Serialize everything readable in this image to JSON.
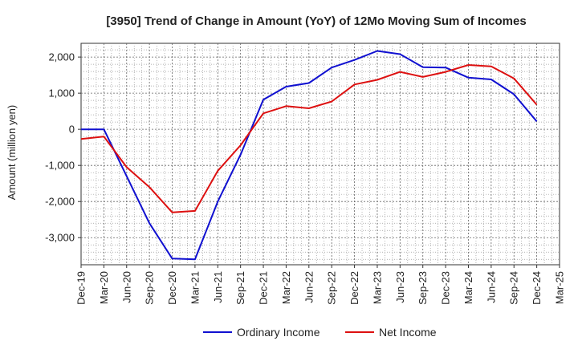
{
  "chart_data": {
    "type": "line",
    "title": "[3950]  Trend of Change in Amount (YoY) of 12Mo Moving Sum of Incomes",
    "ylabel": "Amount (million yen)",
    "xlabel": "",
    "ylim": [
      -3750,
      2380
    ],
    "yticks": [
      2000,
      1000,
      0,
      -1000,
      -2000,
      -3000
    ],
    "ytick_labels": [
      "2,000",
      "1,000",
      "0",
      "-1,000",
      "-2,000",
      "-3,000"
    ],
    "categories": [
      "Dec-19",
      "Mar-20",
      "Jun-20",
      "Sep-20",
      "Dec-20",
      "Mar-21",
      "Jun-21",
      "Sep-21",
      "Dec-21",
      "Mar-22",
      "Jun-22",
      "Sep-22",
      "Dec-22",
      "Mar-23",
      "Jun-23",
      "Sep-23",
      "Dec-23",
      "Mar-24",
      "Jun-24",
      "Sep-24",
      "Dec-24",
      "Mar-25"
    ],
    "grid": true,
    "legend_position": "bottom",
    "series": [
      {
        "name": "Ordinary Income",
        "color": "#1010d0",
        "values": [
          0,
          0,
          -1300,
          -2600,
          -3580,
          -3600,
          -2000,
          -700,
          820,
          1180,
          1280,
          1710,
          1920,
          2170,
          2080,
          1720,
          1710,
          1430,
          1380,
          970,
          220,
          null
        ]
      },
      {
        "name": "Net Income",
        "color": "#dd1010",
        "values": [
          -270,
          -200,
          -1050,
          -1600,
          -2300,
          -2260,
          -1150,
          -440,
          440,
          640,
          580,
          770,
          1240,
          1370,
          1590,
          1450,
          1590,
          1780,
          1740,
          1410,
          680,
          null
        ]
      }
    ]
  }
}
